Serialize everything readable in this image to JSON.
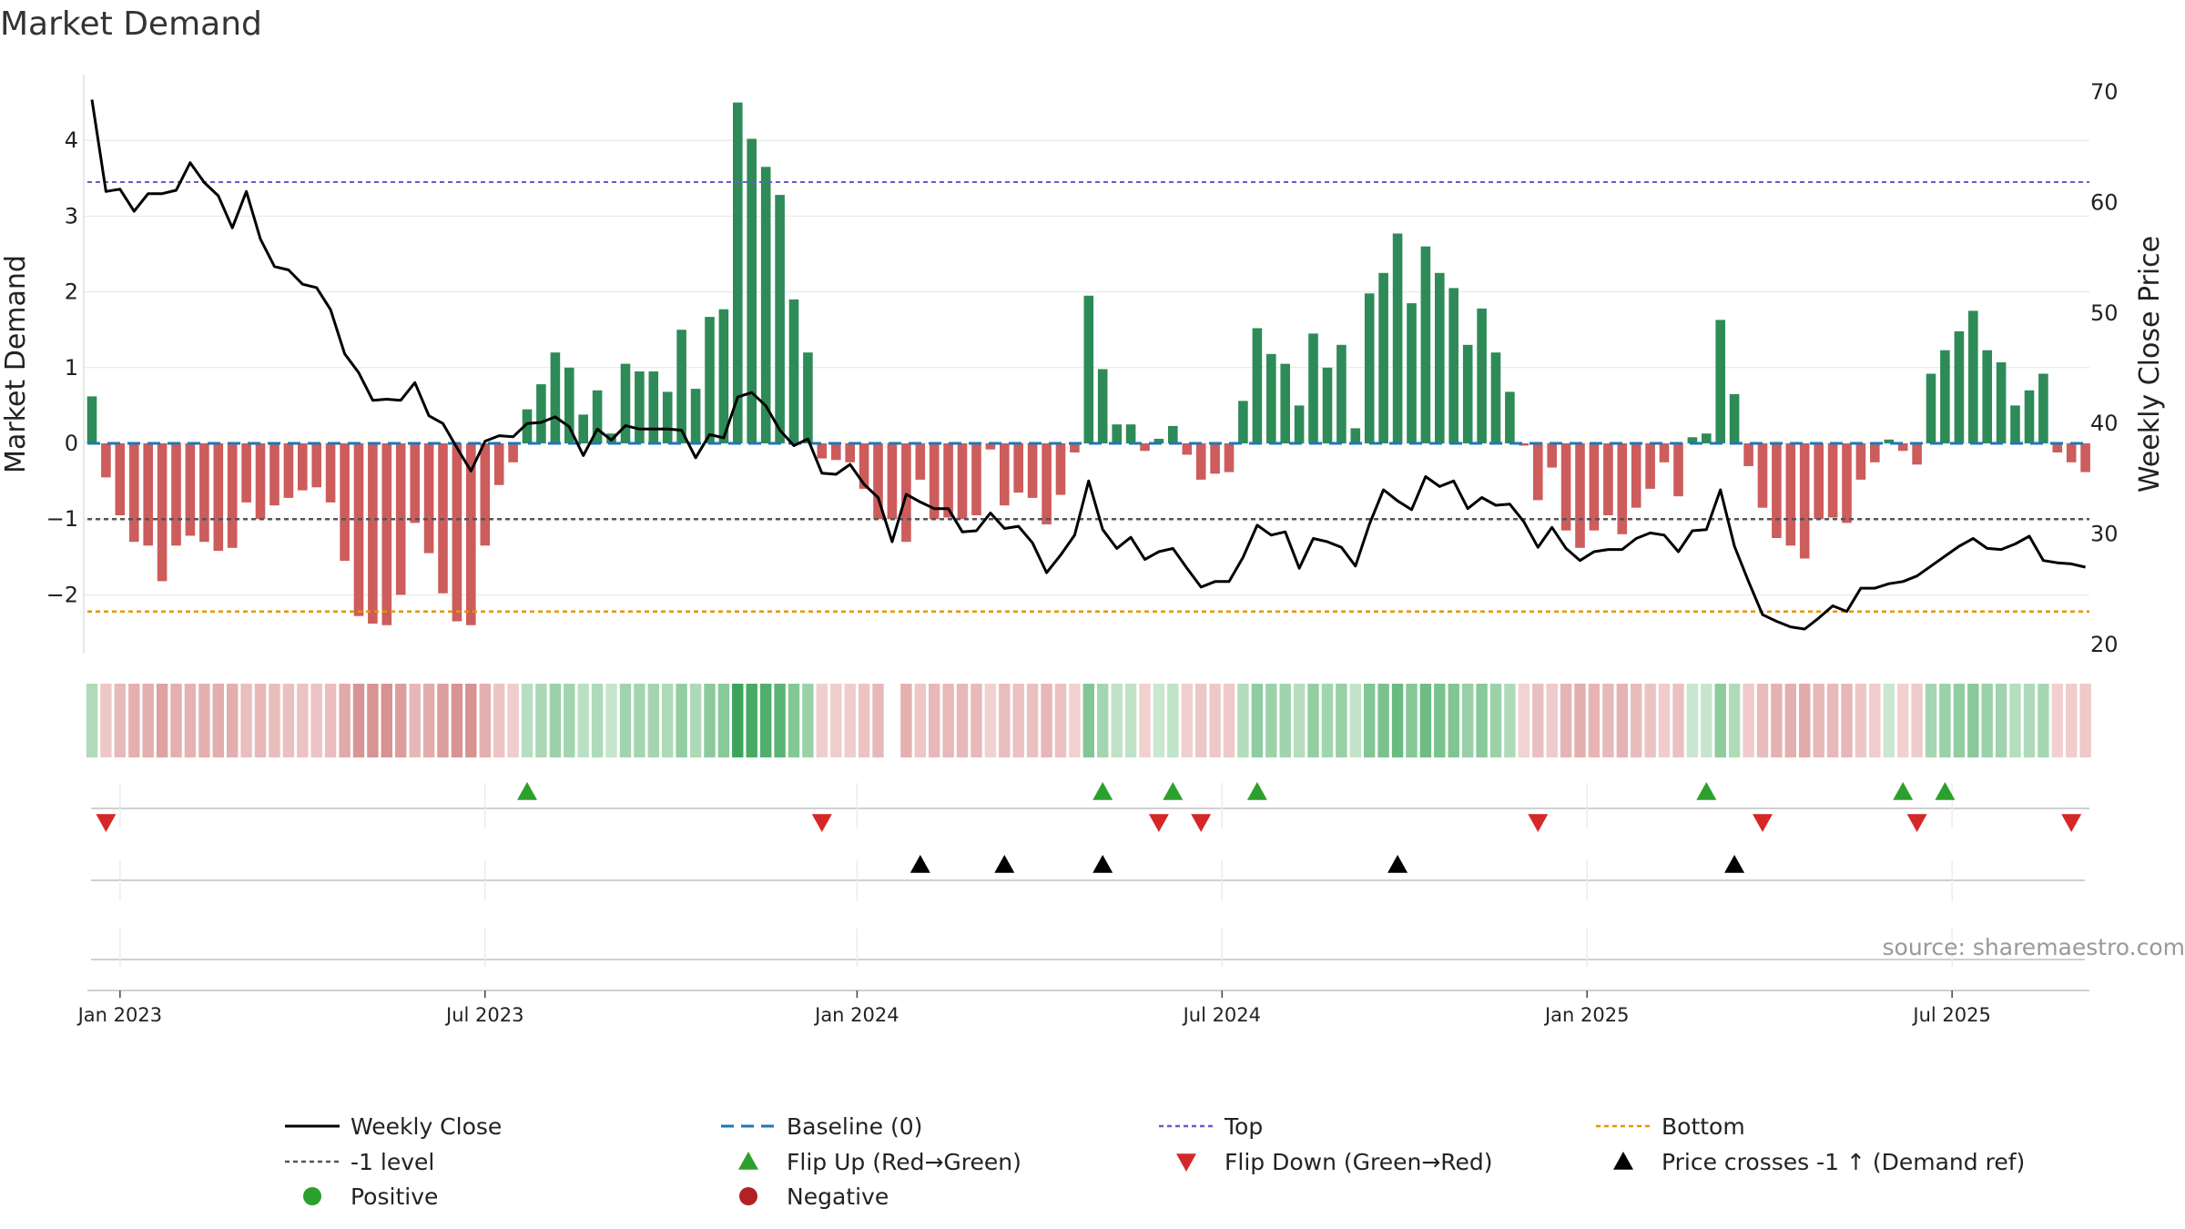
{
  "title": "Market Demand",
  "source": "source: sharemaestro.com",
  "colors": {
    "positive": "#2e8b57",
    "negative": "#cd5c5c",
    "price": "#000000",
    "baseline": "#1f77b4",
    "top": "#6a5acd",
    "bottom": "#e69500",
    "minus1": "#555555",
    "flip_up": "#2ca02c",
    "flip_down": "#d62728",
    "cross": "#000000",
    "grid": "#e6e6e6"
  },
  "chart_data": {
    "type": "bar",
    "title": "Market Demand",
    "ylabel": "Market Demand",
    "y2label": "Weekly Close Price",
    "ylim": [
      -2.8,
      4.9
    ],
    "y2lim": [
      18.5,
      72.5
    ],
    "yticks": [
      4,
      3,
      2,
      1,
      0,
      -1,
      -2
    ],
    "ytick_labels": [
      "4",
      "3",
      "2",
      "1",
      "0",
      "−1",
      "−2"
    ],
    "y2ticks": [
      70,
      60,
      50,
      40,
      30,
      20
    ],
    "y2tick_labels": [
      "70",
      "60",
      "50",
      "40",
      "30",
      "20"
    ],
    "date_ticks": [
      {
        "week": 2,
        "label": "Jan 2023"
      },
      {
        "week": 28,
        "label": "Jul 2023"
      },
      {
        "week": 54.5,
        "label": "Jan 2024"
      },
      {
        "week": 80.5,
        "label": "Jul 2024"
      },
      {
        "week": 106.5,
        "label": "Jan 2025"
      },
      {
        "week": 132.5,
        "label": "Jul 2025"
      }
    ],
    "top_level": 3.45,
    "bottom_level": -2.22,
    "minus1_level": -1,
    "baseline_level": 0,
    "demand": [
      0.62,
      -0.45,
      -0.95,
      -1.3,
      -1.35,
      -1.82,
      -1.35,
      -1.22,
      -1.3,
      -1.42,
      -1.38,
      -0.78,
      -1.0,
      -0.82,
      -0.72,
      -0.62,
      -0.58,
      -0.78,
      -1.55,
      -2.28,
      -2.38,
      -2.4,
      -2.0,
      -1.05,
      -1.45,
      -1.98,
      -2.35,
      -2.4,
      -1.35,
      -0.55,
      -0.25,
      0.45,
      0.78,
      1.2,
      1.0,
      0.38,
      0.7,
      0.13,
      1.05,
      0.95,
      0.95,
      0.68,
      1.5,
      0.72,
      1.67,
      1.77,
      4.5,
      4.02,
      3.65,
      3.28,
      1.9,
      1.2,
      -0.2,
      -0.22,
      -0.25,
      -0.6,
      -1.0,
      -1.0,
      -1.3,
      -0.48,
      -1.0,
      -0.98,
      -1.0,
      -0.95,
      -0.08,
      -0.82,
      -0.65,
      -0.72,
      -1.07,
      -0.68,
      -0.12,
      1.95,
      0.98,
      0.25,
      0.25,
      -0.1,
      0.06,
      0.23,
      -0.15,
      -0.48,
      -0.4,
      -0.38,
      0.56,
      1.52,
      1.18,
      1.05,
      0.5,
      1.45,
      1.0,
      1.3,
      0.2,
      1.98,
      2.25,
      2.77,
      1.85,
      2.6,
      2.25,
      2.05,
      1.3,
      1.78,
      1.2,
      0.68,
      -0.03,
      -0.75,
      -0.32,
      -1.15,
      -1.38,
      -1.15,
      -0.95,
      -1.2,
      -0.85,
      -0.6,
      -0.25,
      -0.7,
      0.08,
      0.13,
      1.63,
      0.65,
      -0.3,
      -0.85,
      -1.25,
      -1.35,
      -1.52,
      -1.0,
      -0.98,
      -1.05,
      -0.48,
      -0.25,
      0.05,
      -0.1,
      -0.28,
      0.92,
      1.23,
      1.48,
      1.75,
      1.23,
      1.07,
      0.5,
      0.7,
      0.92,
      -0.12,
      -0.25,
      -0.38
    ],
    "price": [
      69.3,
      61.0,
      61.2,
      59.2,
      60.8,
      60.8,
      61.1,
      63.6,
      61.8,
      60.6,
      57.7,
      61.0,
      56.7,
      54.2,
      53.9,
      52.6,
      52.3,
      50.3,
      46.3,
      44.6,
      42.1,
      42.2,
      42.1,
      43.7,
      40.7,
      40.0,
      37.8,
      35.7,
      38.4,
      38.9,
      38.8,
      40.0,
      40.1,
      40.6,
      39.7,
      37.1,
      39.5,
      38.5,
      39.8,
      39.5,
      39.5,
      39.5,
      39.4,
      36.9,
      39.0,
      38.7,
      42.4,
      42.8,
      41.6,
      39.4,
      38.0,
      38.6,
      35.5,
      35.4,
      36.3,
      34.5,
      33.3,
      29.3,
      33.6,
      32.9,
      32.3,
      32.3,
      30.2,
      30.3,
      31.9,
      30.5,
      30.7,
      29.2,
      26.5,
      28.1,
      29.9,
      34.8,
      30.4,
      28.7,
      29.7,
      27.7,
      28.4,
      28.7,
      26.9,
      25.2,
      25.7,
      25.7,
      27.9,
      30.8,
      29.9,
      30.2,
      26.9,
      29.6,
      29.3,
      28.8,
      27.1,
      30.9,
      34.0,
      33.0,
      32.2,
      35.2,
      34.3,
      34.8,
      32.3,
      33.3,
      32.6,
      32.7,
      31.1,
      28.8,
      30.6,
      28.7,
      27.6,
      28.4,
      28.6,
      28.6,
      29.6,
      30.1,
      29.9,
      28.4,
      30.3,
      30.4,
      34.0,
      28.9,
      25.7,
      22.7,
      22.1,
      21.6,
      21.4,
      22.4,
      23.5,
      23.0,
      25.1,
      25.1,
      25.5,
      25.7,
      26.2,
      27.1,
      28.0,
      28.9,
      29.6,
      28.7,
      28.6,
      29.1,
      29.8,
      27.6,
      27.4,
      27.3,
      27.0
    ],
    "flip_up_weeks": [
      31,
      72,
      77,
      83,
      115,
      129,
      132
    ],
    "flip_down_weeks": [
      1,
      52,
      76,
      79,
      103,
      119,
      130,
      141
    ],
    "price_cross_weeks": [
      59,
      65,
      72,
      93,
      117
    ]
  },
  "legend": [
    {
      "key": "weekly_close",
      "label": "Weekly Close",
      "marker": "line-solid"
    },
    {
      "key": "baseline",
      "label": "Baseline (0)",
      "marker": "line-dashed"
    },
    {
      "key": "top",
      "label": "Top",
      "marker": "line-dotted"
    },
    {
      "key": "bottom",
      "label": "Bottom",
      "marker": "line-dotted"
    },
    {
      "key": "minus1",
      "label": "-1 level",
      "marker": "line-dotted"
    },
    {
      "key": "flip_up",
      "label": "Flip Up (Red→Green)",
      "marker": "triangle-up"
    },
    {
      "key": "flip_down",
      "label": "Flip Down (Green→Red)",
      "marker": "triangle-down"
    },
    {
      "key": "cross",
      "label": "Price crosses -1 ↑ (Demand ref)",
      "marker": "triangle-up"
    },
    {
      "key": "positive",
      "label": "Positive",
      "marker": "circle"
    },
    {
      "key": "negative",
      "label": "Negative",
      "marker": "circle"
    }
  ]
}
